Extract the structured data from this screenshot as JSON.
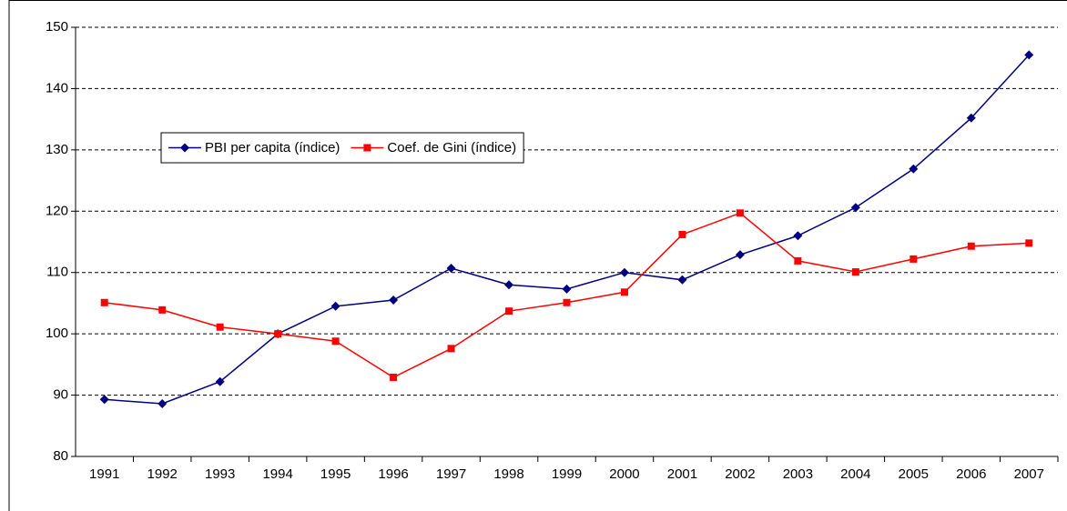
{
  "chart_data": {
    "type": "line",
    "categories": [
      "1991",
      "1992",
      "1993",
      "1994",
      "1995",
      "1996",
      "1997",
      "1998",
      "1999",
      "2000",
      "2001",
      "2002",
      "2003",
      "2004",
      "2005",
      "2006",
      "2007"
    ],
    "series": [
      {
        "name": "PBI per capita (índice)",
        "color": "#000080",
        "marker": "diamond",
        "values": [
          89.3,
          88.6,
          92.2,
          100.0,
          104.5,
          105.5,
          110.7,
          108.0,
          107.3,
          110.0,
          108.8,
          112.9,
          116.0,
          120.6,
          126.9,
          135.2,
          145.5
        ]
      },
      {
        "name": "Coef. de Gini (índice)",
        "color": "#ff0000",
        "marker": "square",
        "values": [
          105.1,
          103.9,
          101.1,
          100.0,
          98.8,
          92.9,
          97.6,
          103.7,
          105.1,
          106.8,
          116.2,
          119.7,
          111.9,
          110.1,
          112.2,
          114.3,
          114.8
        ]
      }
    ],
    "ylim": [
      80,
      150
    ],
    "yticks": [
      80,
      90,
      100,
      110,
      120,
      130,
      140,
      150
    ],
    "grid": true,
    "legend": "upper left"
  }
}
